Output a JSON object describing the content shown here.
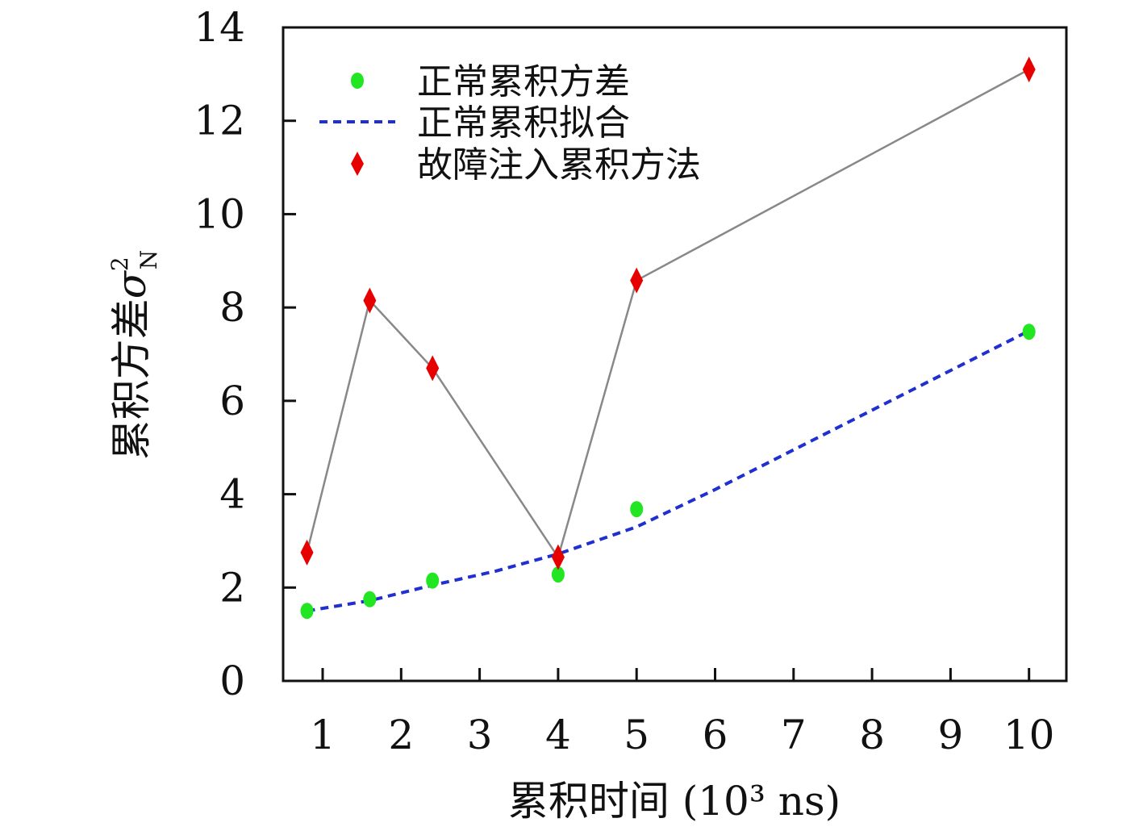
{
  "chart_data": {
    "type": "scatter",
    "categories": [
      "1",
      "2",
      "3",
      "4",
      "5",
      "6",
      "7",
      "8",
      "9",
      "10"
    ],
    "xlabel": "累积时间 (10³ ns)",
    "ylabel": "累积方差",
    "ylabel_symbol": "σ",
    "ylabel_superscript": "2",
    "ylabel_subscript": "N",
    "ylim": [
      0,
      14
    ],
    "yticks": [
      0,
      2,
      4,
      6,
      8,
      10,
      12,
      14
    ],
    "grid": false,
    "legend_position": "top-left",
    "series": [
      {
        "name": "正常累积方差",
        "kind": "scatter",
        "marker": "circle",
        "color": "#22e622",
        "x": [
          0.8,
          1.6,
          2.4,
          4.0,
          5.0,
          10.0
        ],
        "values": [
          1.5,
          1.75,
          2.15,
          2.28,
          3.68,
          7.48
        ]
      },
      {
        "name": "正常累积拟合",
        "kind": "line",
        "dash": true,
        "color": "#1f2fd0",
        "x": [
          0.8,
          1.6,
          2.4,
          3.2,
          4.0,
          5.0,
          6.0,
          7.0,
          8.0,
          9.0,
          10.0
        ],
        "values": [
          1.5,
          1.72,
          2.05,
          2.35,
          2.72,
          3.3,
          4.1,
          4.95,
          5.8,
          6.65,
          7.5
        ]
      },
      {
        "name": "故障注入累积方法",
        "kind": "scatter",
        "marker": "diamond",
        "color": "#e60000",
        "connector_color": "#888888",
        "x": [
          0.8,
          1.6,
          2.4,
          4.0,
          5.0,
          10.0
        ],
        "values": [
          2.75,
          8.15,
          6.7,
          2.65,
          8.58,
          13.1
        ]
      }
    ]
  }
}
